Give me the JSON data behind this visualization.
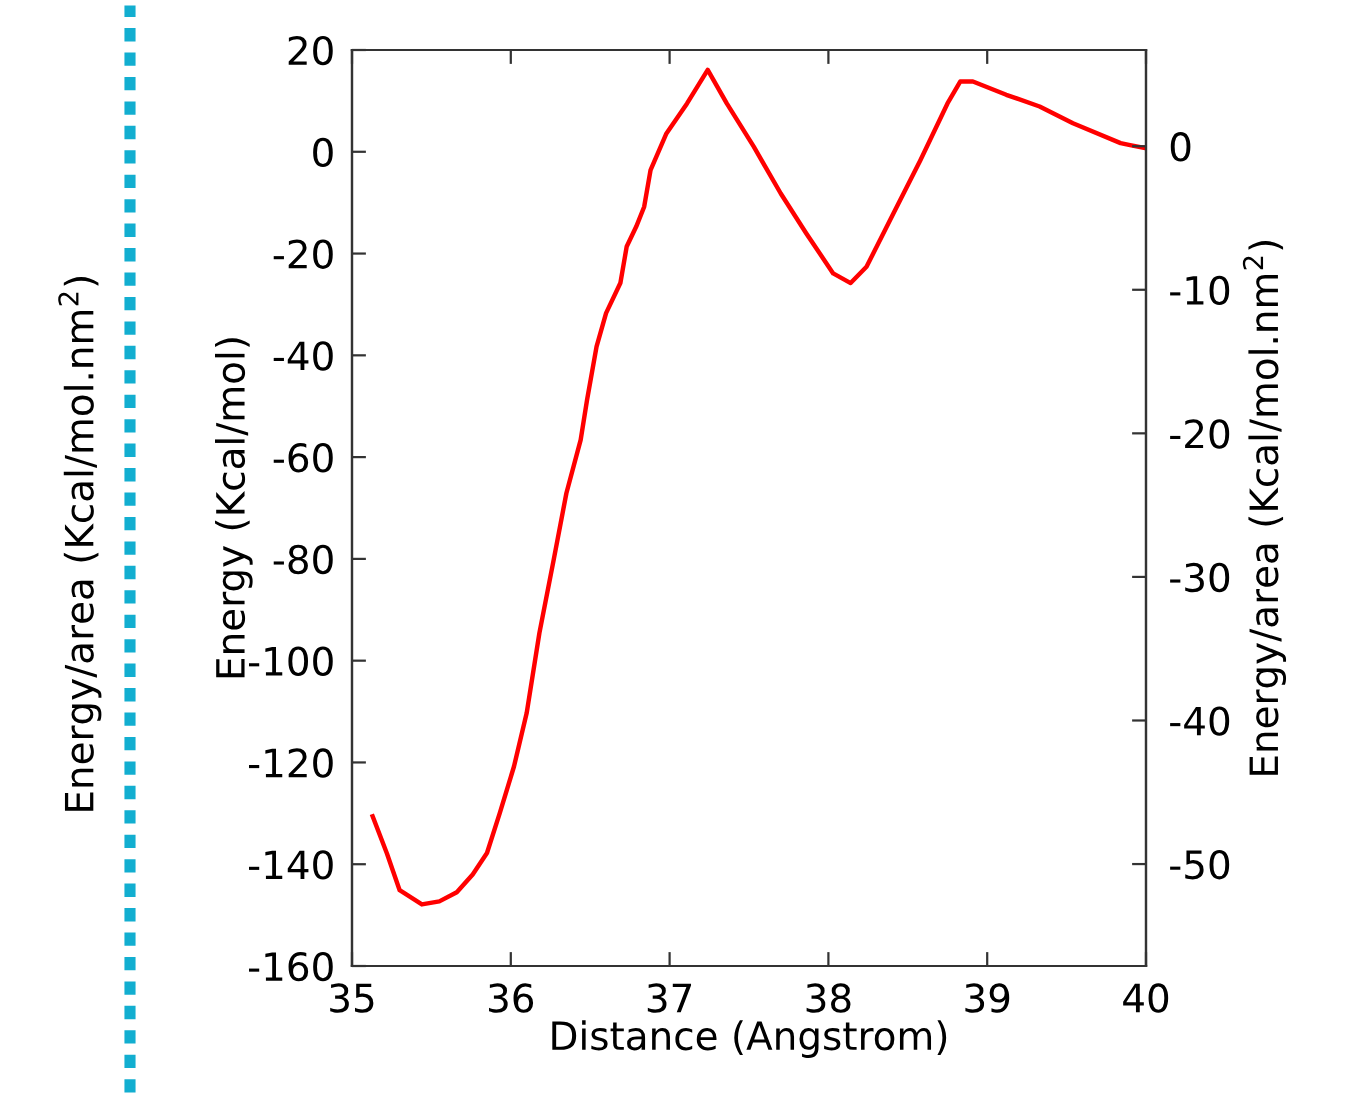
{
  "chart_data": {
    "type": "line",
    "xlabel": "Distance (Angstrom)",
    "ylabel": "Energy (Kcal/mol)",
    "y2label": "Energy/area (Kcal/mol.nm$^{2}$)",
    "annotations": [
      "Energy/area (Kcal/mol.nm$^{2}$)"
    ],
    "x": [
      35.13,
      35.22,
      35.3,
      35.44,
      35.55,
      35.66,
      35.76,
      35.85,
      35.93,
      36.02,
      36.1,
      36.18,
      36.27,
      36.35,
      36.44,
      36.48,
      36.54,
      36.6,
      36.69,
      36.73,
      36.79,
      36.84,
      36.88,
      36.98,
      37.11,
      37.24,
      37.36,
      37.53,
      37.7,
      37.86,
      38.03,
      38.14,
      38.24,
      38.41,
      38.58,
      38.75,
      38.83,
      38.91,
      39.12,
      39.33,
      39.54,
      39.84,
      39.9,
      40.0
    ],
    "series": [
      {
        "color": "#ff0000",
        "values": [
          -130.6,
          -137.9,
          -145.1,
          -147.9,
          -147.3,
          -145.5,
          -142.0,
          -137.8,
          -130.0,
          -120.8,
          -110.3,
          -94.6,
          -80.2,
          -67.1,
          -56.6,
          -48.8,
          -38.3,
          -31.7,
          -25.8,
          -18.6,
          -14.7,
          -10.8,
          -3.6,
          3.6,
          9.5,
          16.1,
          9.5,
          1.0,
          -8.2,
          -16.0,
          -23.9,
          -25.8,
          -22.6,
          -12.1,
          -1.6,
          9.5,
          13.8,
          13.8,
          11.2,
          8.9,
          5.6,
          1.7,
          1.3,
          0.7
        ]
      }
    ],
    "xlim": [
      35,
      40
    ],
    "xticks": [
      35,
      36,
      37,
      38,
      39,
      40
    ],
    "ylim": [
      -160,
      20
    ],
    "yticks": [
      -160,
      -140,
      -120,
      -100,
      -80,
      -60,
      -40,
      -20,
      0,
      20
    ],
    "y2lim": [
      -57.1,
      6.7
    ],
    "y2ticks": [
      -50,
      -40,
      -30,
      -20,
      -10,
      0
    ],
    "grid": false,
    "marker": "none",
    "line_style": "solid"
  }
}
